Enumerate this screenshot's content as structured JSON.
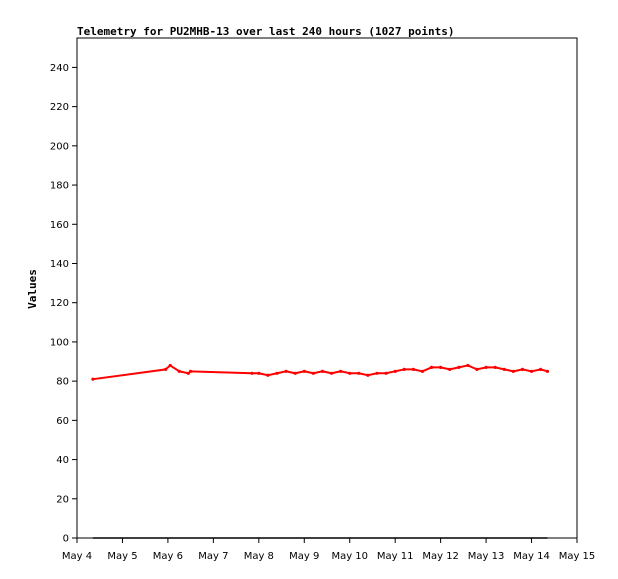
{
  "chart_data": {
    "type": "line",
    "title": "Telemetry for PU2MHB-13 over last 240 hours (1027 points)",
    "xlabel": "",
    "ylabel": "Values",
    "x_ticks": [
      "May 4",
      "May 5",
      "May 6",
      "May 7",
      "May 8",
      "May 9",
      "May 10",
      "May 11",
      "May 12",
      "May 13",
      "May 14",
      "May 15"
    ],
    "xlim": [
      4.0,
      15.0
    ],
    "y_ticks": [
      0,
      20,
      40,
      60,
      80,
      100,
      120,
      140,
      160,
      180,
      200,
      220,
      240
    ],
    "ylim": [
      0,
      255
    ],
    "grid": false,
    "legend": "none",
    "series": [
      {
        "color": "#ff0000",
        "x": [
          4.35,
          5.95,
          6.05,
          6.25,
          6.45,
          6.5,
          7.85,
          8.0,
          8.2,
          8.4,
          8.6,
          8.8,
          9.0,
          9.2,
          9.4,
          9.6,
          9.8,
          10.0,
          10.2,
          10.4,
          10.6,
          10.8,
          11.0,
          11.2,
          11.4,
          11.6,
          11.8,
          12.0,
          12.2,
          12.4,
          12.6,
          12.8,
          13.0,
          13.2,
          13.4,
          13.6,
          13.8,
          14.0,
          14.2,
          14.35
        ],
        "y": [
          81,
          86,
          88,
          85,
          84,
          85,
          84,
          84,
          83,
          84,
          85,
          84,
          85,
          84,
          85,
          84,
          85,
          84,
          84,
          83,
          84,
          84,
          85,
          86,
          86,
          85,
          87,
          87,
          86,
          87,
          88,
          86,
          87,
          87,
          86,
          85,
          86,
          85,
          86,
          85
        ]
      },
      {
        "color": "#000000",
        "x": [
          4.35,
          14.35
        ],
        "y": [
          0,
          0
        ]
      }
    ]
  }
}
